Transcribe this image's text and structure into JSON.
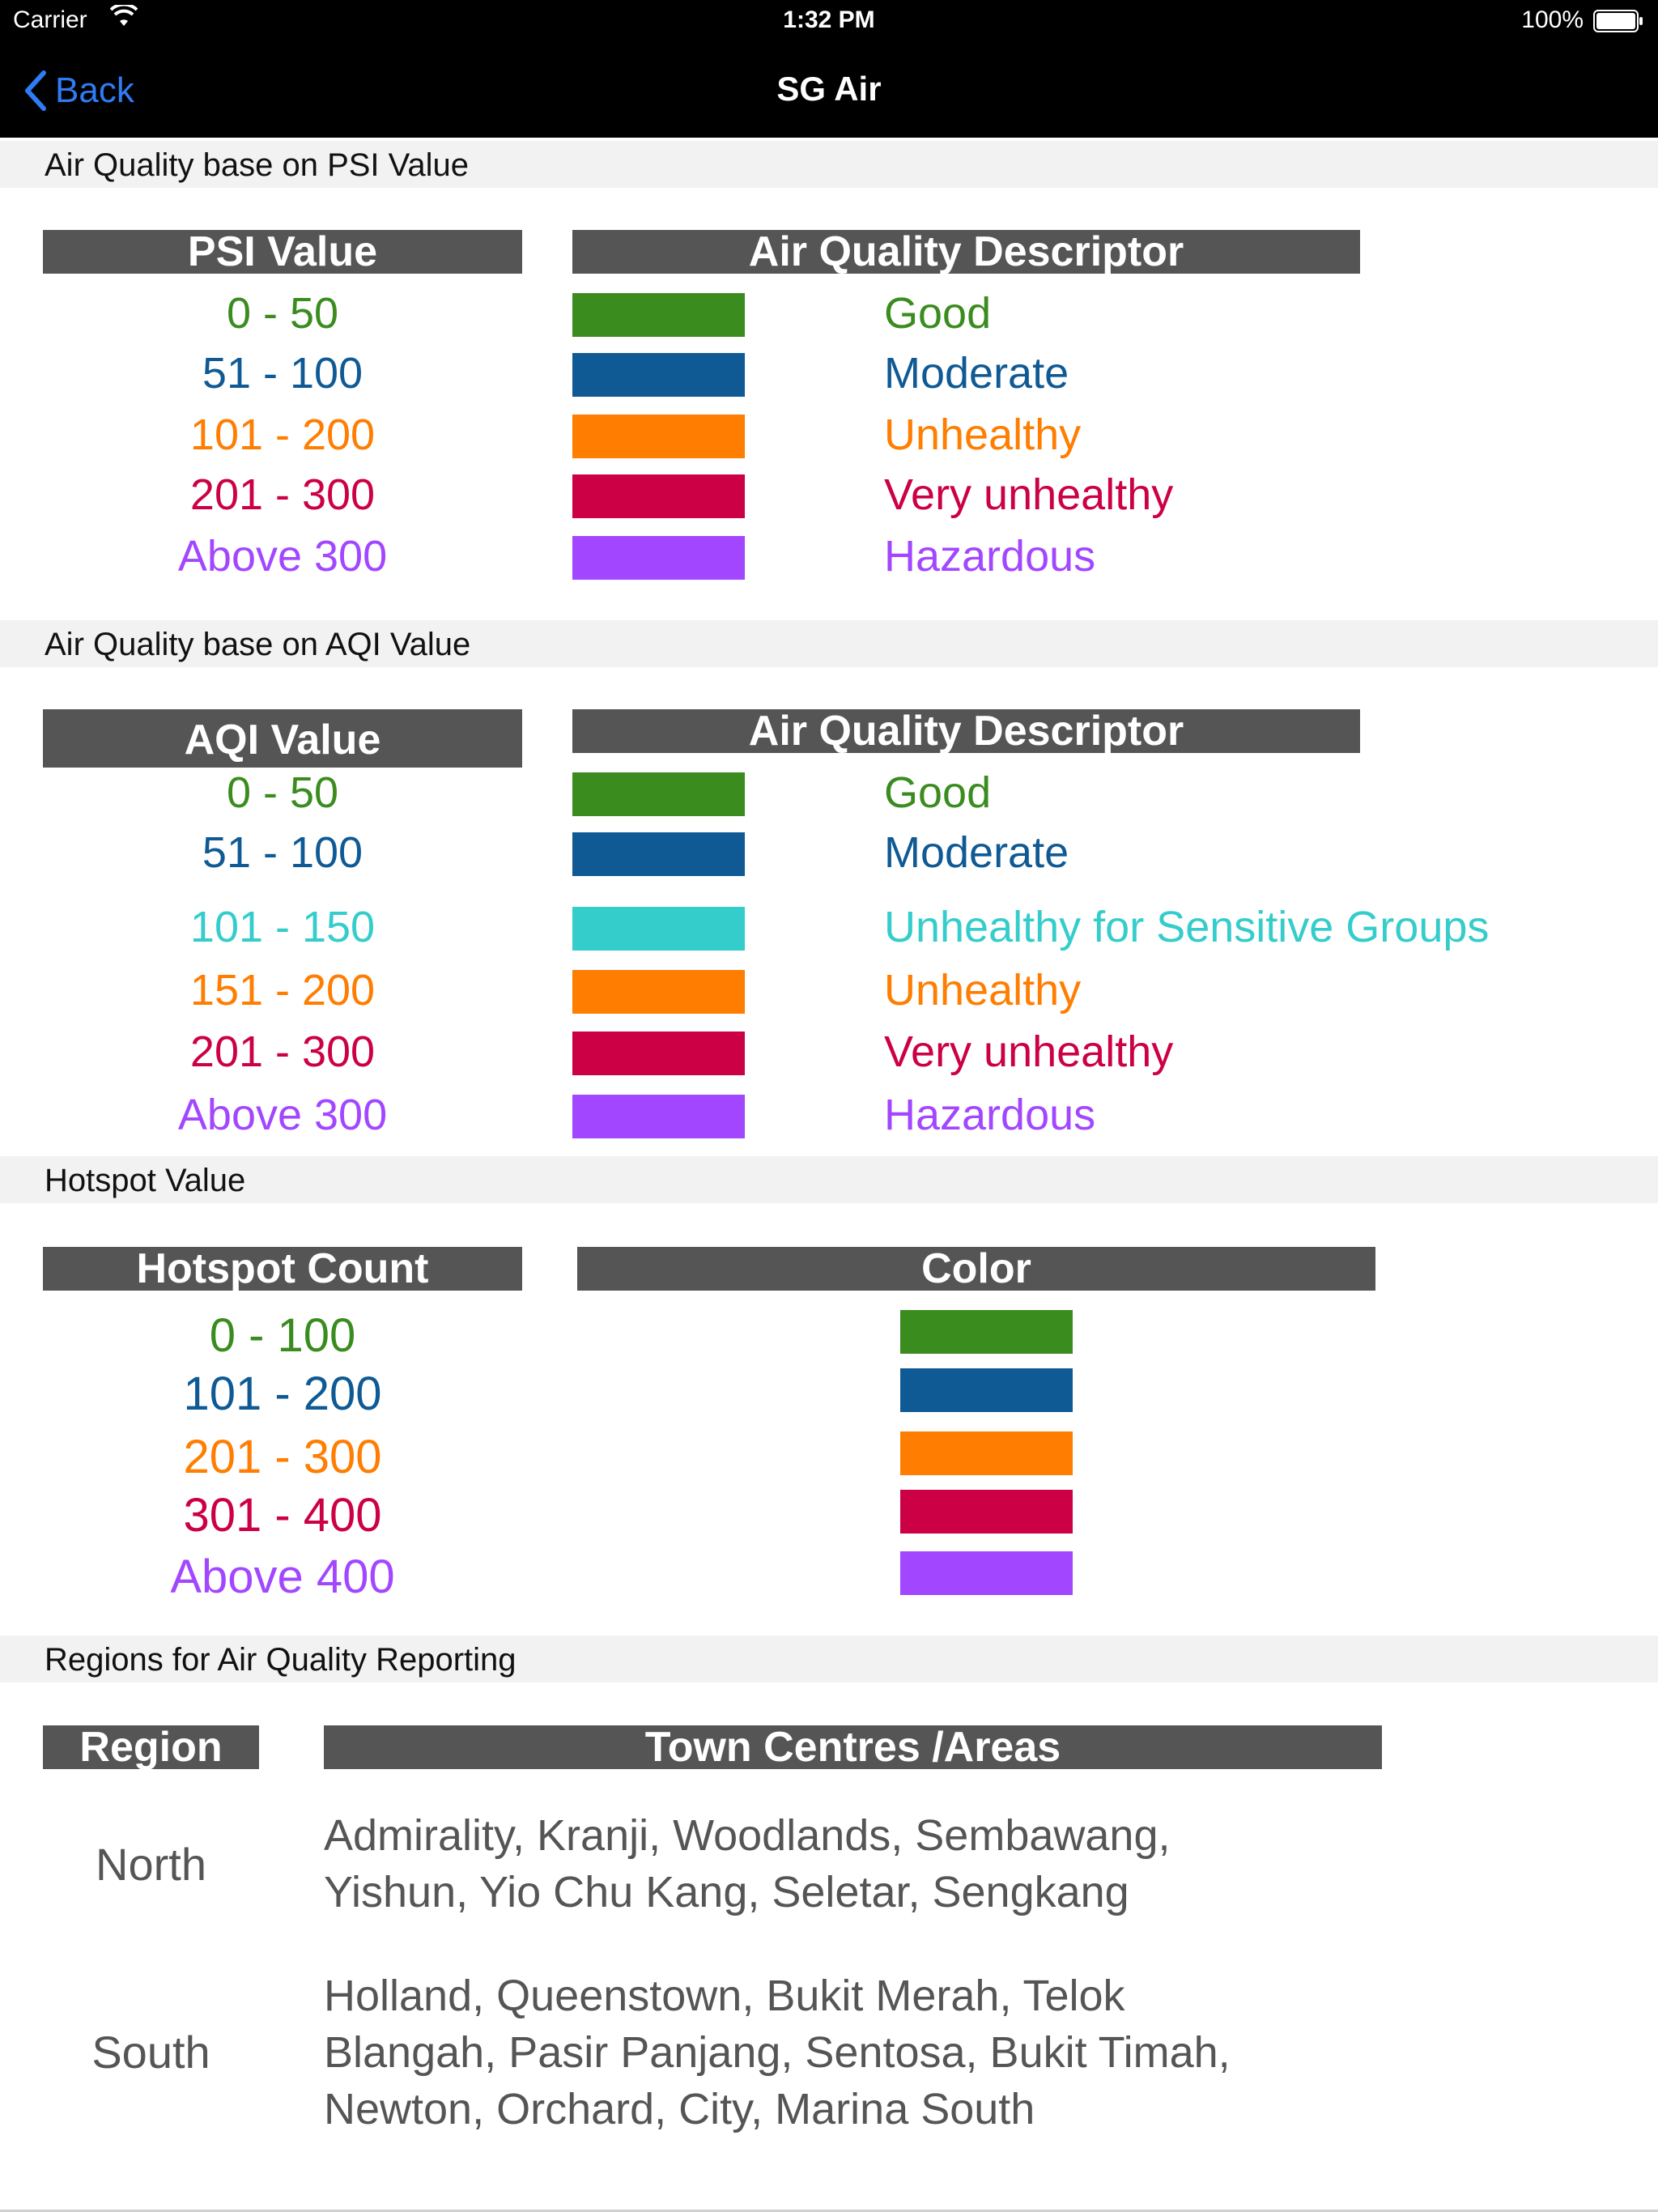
{
  "status_bar": {
    "carrier": "Carrier",
    "time": "1:32 PM",
    "battery": "100%"
  },
  "nav": {
    "back_label": "Back",
    "title": "SG Air"
  },
  "colors": {
    "good": "#3a8c1f",
    "moderate": "#0f5a94",
    "sensitive": "#35cccc",
    "unhealthy": "#ff7d00",
    "very_unhealthy": "#cc0045",
    "hazardous": "#a247ff",
    "header_bg": "#555555"
  },
  "psi": {
    "section_title": "Air Quality base on PSI Value",
    "col_value": "PSI Value",
    "col_desc": "Air Quality Descriptor",
    "rows": [
      {
        "range": "0 - 50",
        "label": "Good",
        "level": "good"
      },
      {
        "range": "51 - 100",
        "label": "Moderate",
        "level": "moderate"
      },
      {
        "range": "101 - 200",
        "label": "Unhealthy",
        "level": "unhealthy"
      },
      {
        "range": "201 - 300",
        "label": "Very unhealthy",
        "level": "very_unhealthy"
      },
      {
        "range": "Above 300",
        "label": "Hazardous",
        "level": "hazardous"
      }
    ]
  },
  "aqi": {
    "section_title": "Air Quality base on AQI Value",
    "col_value": "AQI Value",
    "col_desc": "Air Quality Descriptor",
    "rows": [
      {
        "range": "0 - 50",
        "label": "Good",
        "level": "good"
      },
      {
        "range": "51 - 100",
        "label": "Moderate",
        "level": "moderate"
      },
      {
        "range": "101 - 150",
        "label": "Unhealthy for Sensitive Groups",
        "level": "sensitive"
      },
      {
        "range": "151 - 200",
        "label": "Unhealthy",
        "level": "unhealthy"
      },
      {
        "range": "201 - 300",
        "label": "Very unhealthy",
        "level": "very_unhealthy"
      },
      {
        "range": "Above 300",
        "label": "Hazardous",
        "level": "hazardous"
      }
    ]
  },
  "hotspot": {
    "section_title": "Hotspot Value",
    "col_value": "Hotspot Count",
    "col_color": "Color",
    "rows": [
      {
        "range": "0 - 100",
        "level": "good"
      },
      {
        "range": "101 - 200",
        "level": "moderate"
      },
      {
        "range": "201 - 300",
        "level": "unhealthy"
      },
      {
        "range": "301 - 400",
        "level": "very_unhealthy"
      },
      {
        "range": "Above 400",
        "level": "hazardous"
      }
    ]
  },
  "regions": {
    "section_title": "Regions for Air Quality Reporting",
    "col_region": "Region",
    "col_areas": "Town Centres /Areas",
    "rows": [
      {
        "region": "North",
        "areas": [
          "Admirality, Kranji, Woodlands, Sembawang,",
          "Yishun, Yio Chu Kang, Seletar, Sengkang"
        ]
      },
      {
        "region": "South",
        "areas": [
          "Holland, Queenstown, Bukit Merah, Telok",
          "Blangah, Pasir Panjang, Sentosa, Bukit Timah,",
          "Newton, Orchard, City, Marina South"
        ]
      }
    ]
  }
}
